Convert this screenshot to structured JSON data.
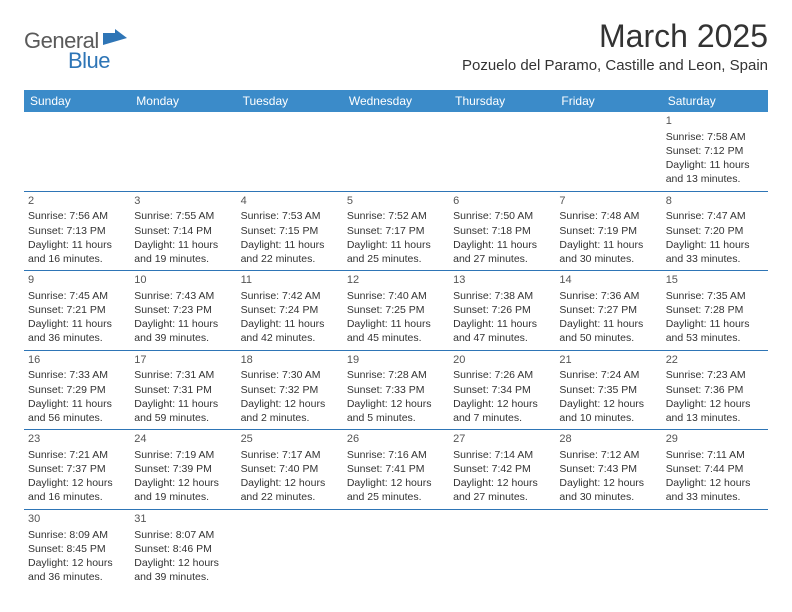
{
  "logo": {
    "general": "General",
    "blue": "Blue"
  },
  "title": "March 2025",
  "location": "Pozuelo del Paramo, Castille and Leon, Spain",
  "colors": {
    "header_bg": "#3b8bc9",
    "header_text": "#ffffff",
    "border": "#2e75b6",
    "text": "#333333",
    "logo_gray": "#5a5a5a",
    "logo_blue": "#2e75b6",
    "background": "#ffffff"
  },
  "weekday_labels": [
    "Sunday",
    "Monday",
    "Tuesday",
    "Wednesday",
    "Thursday",
    "Friday",
    "Saturday"
  ],
  "days": {
    "1": {
      "sunrise": "7:58 AM",
      "sunset": "7:12 PM",
      "daylight": "11 hours and 13 minutes."
    },
    "2": {
      "sunrise": "7:56 AM",
      "sunset": "7:13 PM",
      "daylight": "11 hours and 16 minutes."
    },
    "3": {
      "sunrise": "7:55 AM",
      "sunset": "7:14 PM",
      "daylight": "11 hours and 19 minutes."
    },
    "4": {
      "sunrise": "7:53 AM",
      "sunset": "7:15 PM",
      "daylight": "11 hours and 22 minutes."
    },
    "5": {
      "sunrise": "7:52 AM",
      "sunset": "7:17 PM",
      "daylight": "11 hours and 25 minutes."
    },
    "6": {
      "sunrise": "7:50 AM",
      "sunset": "7:18 PM",
      "daylight": "11 hours and 27 minutes."
    },
    "7": {
      "sunrise": "7:48 AM",
      "sunset": "7:19 PM",
      "daylight": "11 hours and 30 minutes."
    },
    "8": {
      "sunrise": "7:47 AM",
      "sunset": "7:20 PM",
      "daylight": "11 hours and 33 minutes."
    },
    "9": {
      "sunrise": "7:45 AM",
      "sunset": "7:21 PM",
      "daylight": "11 hours and 36 minutes."
    },
    "10": {
      "sunrise": "7:43 AM",
      "sunset": "7:23 PM",
      "daylight": "11 hours and 39 minutes."
    },
    "11": {
      "sunrise": "7:42 AM",
      "sunset": "7:24 PM",
      "daylight": "11 hours and 42 minutes."
    },
    "12": {
      "sunrise": "7:40 AM",
      "sunset": "7:25 PM",
      "daylight": "11 hours and 45 minutes."
    },
    "13": {
      "sunrise": "7:38 AM",
      "sunset": "7:26 PM",
      "daylight": "11 hours and 47 minutes."
    },
    "14": {
      "sunrise": "7:36 AM",
      "sunset": "7:27 PM",
      "daylight": "11 hours and 50 minutes."
    },
    "15": {
      "sunrise": "7:35 AM",
      "sunset": "7:28 PM",
      "daylight": "11 hours and 53 minutes."
    },
    "16": {
      "sunrise": "7:33 AM",
      "sunset": "7:29 PM",
      "daylight": "11 hours and 56 minutes."
    },
    "17": {
      "sunrise": "7:31 AM",
      "sunset": "7:31 PM",
      "daylight": "11 hours and 59 minutes."
    },
    "18": {
      "sunrise": "7:30 AM",
      "sunset": "7:32 PM",
      "daylight": "12 hours and 2 minutes."
    },
    "19": {
      "sunrise": "7:28 AM",
      "sunset": "7:33 PM",
      "daylight": "12 hours and 5 minutes."
    },
    "20": {
      "sunrise": "7:26 AM",
      "sunset": "7:34 PM",
      "daylight": "12 hours and 7 minutes."
    },
    "21": {
      "sunrise": "7:24 AM",
      "sunset": "7:35 PM",
      "daylight": "12 hours and 10 minutes."
    },
    "22": {
      "sunrise": "7:23 AM",
      "sunset": "7:36 PM",
      "daylight": "12 hours and 13 minutes."
    },
    "23": {
      "sunrise": "7:21 AM",
      "sunset": "7:37 PM",
      "daylight": "12 hours and 16 minutes."
    },
    "24": {
      "sunrise": "7:19 AM",
      "sunset": "7:39 PM",
      "daylight": "12 hours and 19 minutes."
    },
    "25": {
      "sunrise": "7:17 AM",
      "sunset": "7:40 PM",
      "daylight": "12 hours and 22 minutes."
    },
    "26": {
      "sunrise": "7:16 AM",
      "sunset": "7:41 PM",
      "daylight": "12 hours and 25 minutes."
    },
    "27": {
      "sunrise": "7:14 AM",
      "sunset": "7:42 PM",
      "daylight": "12 hours and 27 minutes."
    },
    "28": {
      "sunrise": "7:12 AM",
      "sunset": "7:43 PM",
      "daylight": "12 hours and 30 minutes."
    },
    "29": {
      "sunrise": "7:11 AM",
      "sunset": "7:44 PM",
      "daylight": "12 hours and 33 minutes."
    },
    "30": {
      "sunrise": "8:09 AM",
      "sunset": "8:45 PM",
      "daylight": "12 hours and 36 minutes."
    },
    "31": {
      "sunrise": "8:07 AM",
      "sunset": "8:46 PM",
      "daylight": "12 hours and 39 minutes."
    }
  },
  "labels": {
    "sunrise_prefix": "Sunrise: ",
    "sunset_prefix": "Sunset: ",
    "daylight_prefix": "Daylight: "
  },
  "grid": [
    [
      null,
      null,
      null,
      null,
      null,
      null,
      "1"
    ],
    [
      "2",
      "3",
      "4",
      "5",
      "6",
      "7",
      "8"
    ],
    [
      "9",
      "10",
      "11",
      "12",
      "13",
      "14",
      "15"
    ],
    [
      "16",
      "17",
      "18",
      "19",
      "20",
      "21",
      "22"
    ],
    [
      "23",
      "24",
      "25",
      "26",
      "27",
      "28",
      "29"
    ],
    [
      "30",
      "31",
      null,
      null,
      null,
      null,
      null
    ]
  ]
}
